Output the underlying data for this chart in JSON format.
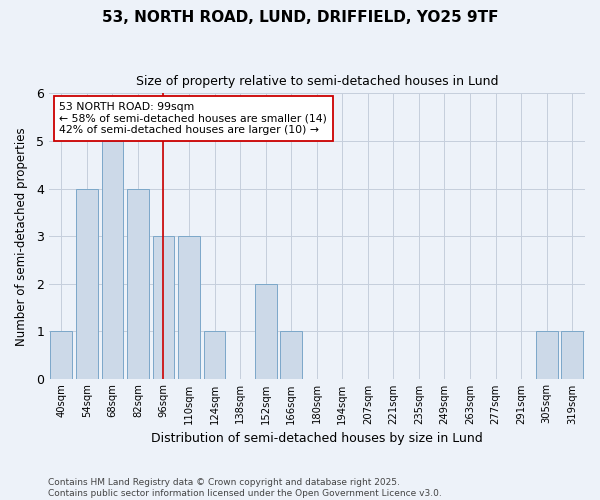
{
  "title_line1": "53, NORTH ROAD, LUND, DRIFFIELD, YO25 9TF",
  "title_line2": "Size of property relative to semi-detached houses in Lund",
  "xlabel": "Distribution of semi-detached houses by size in Lund",
  "ylabel": "Number of semi-detached properties",
  "categories": [
    "40sqm",
    "54sqm",
    "68sqm",
    "82sqm",
    "96sqm",
    "110sqm",
    "124sqm",
    "138sqm",
    "152sqm",
    "166sqm",
    "180sqm",
    "194sqm",
    "207sqm",
    "221sqm",
    "235sqm",
    "249sqm",
    "263sqm",
    "277sqm",
    "291sqm",
    "305sqm",
    "319sqm"
  ],
  "values": [
    1,
    4,
    5,
    4,
    3,
    3,
    1,
    0,
    2,
    1,
    0,
    0,
    0,
    0,
    0,
    0,
    0,
    0,
    0,
    1,
    1
  ],
  "bar_color": "#ccd9e8",
  "bar_edge_color": "#7ba7c9",
  "vline_index": 4,
  "property_label": "53 NORTH ROAD: 99sqm",
  "smaller_text": "← 58% of semi-detached houses are smaller (14)",
  "larger_text": "42% of semi-detached houses are larger (10) →",
  "annotation_box_color": "#ffffff",
  "annotation_box_edge": "#cc0000",
  "vline_color": "#cc0000",
  "ylim": [
    0,
    6
  ],
  "yticks": [
    0,
    1,
    2,
    3,
    4,
    5,
    6
  ],
  "footer_line1": "Contains HM Land Registry data © Crown copyright and database right 2025.",
  "footer_line2": "Contains public sector information licensed under the Open Government Licence v3.0.",
  "bg_color": "#edf2f9",
  "plot_bg_color": "#edf2f9",
  "grid_color": "#c5cedc"
}
